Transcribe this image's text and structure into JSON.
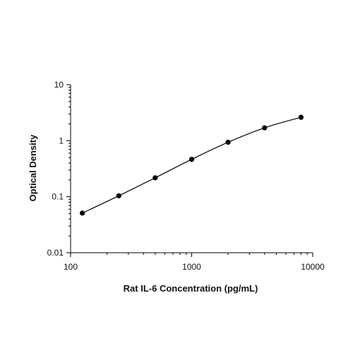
{
  "chart_data": {
    "type": "scatter",
    "title": "",
    "xlabel": "Rat IL-6 Concentration (pg/mL)",
    "ylabel": "Optical Density",
    "x_scale": "log",
    "y_scale": "log",
    "xlim": [
      100,
      10000
    ],
    "ylim": [
      0.01,
      10
    ],
    "x_ticks": [
      {
        "value": 100,
        "label": "100"
      },
      {
        "value": 1000,
        "label": "1000"
      },
      {
        "value": 10000,
        "label": "10000"
      }
    ],
    "y_ticks": [
      {
        "value": 0.01,
        "label": "0.01"
      },
      {
        "value": 0.1,
        "label": "0.1"
      },
      {
        "value": 1,
        "label": "1"
      },
      {
        "value": 10,
        "label": "10"
      }
    ],
    "grid": false,
    "fit_curve": true,
    "series": [
      {
        "x": [
          125,
          250,
          500,
          1000,
          2000,
          4000,
          8000
        ],
        "y": [
          0.051,
          0.104,
          0.218,
          0.465,
          0.94,
          1.7,
          2.62
        ]
      }
    ],
    "colors": {
      "points": "#000000",
      "curve": "#000000",
      "axes": "#000000"
    }
  }
}
